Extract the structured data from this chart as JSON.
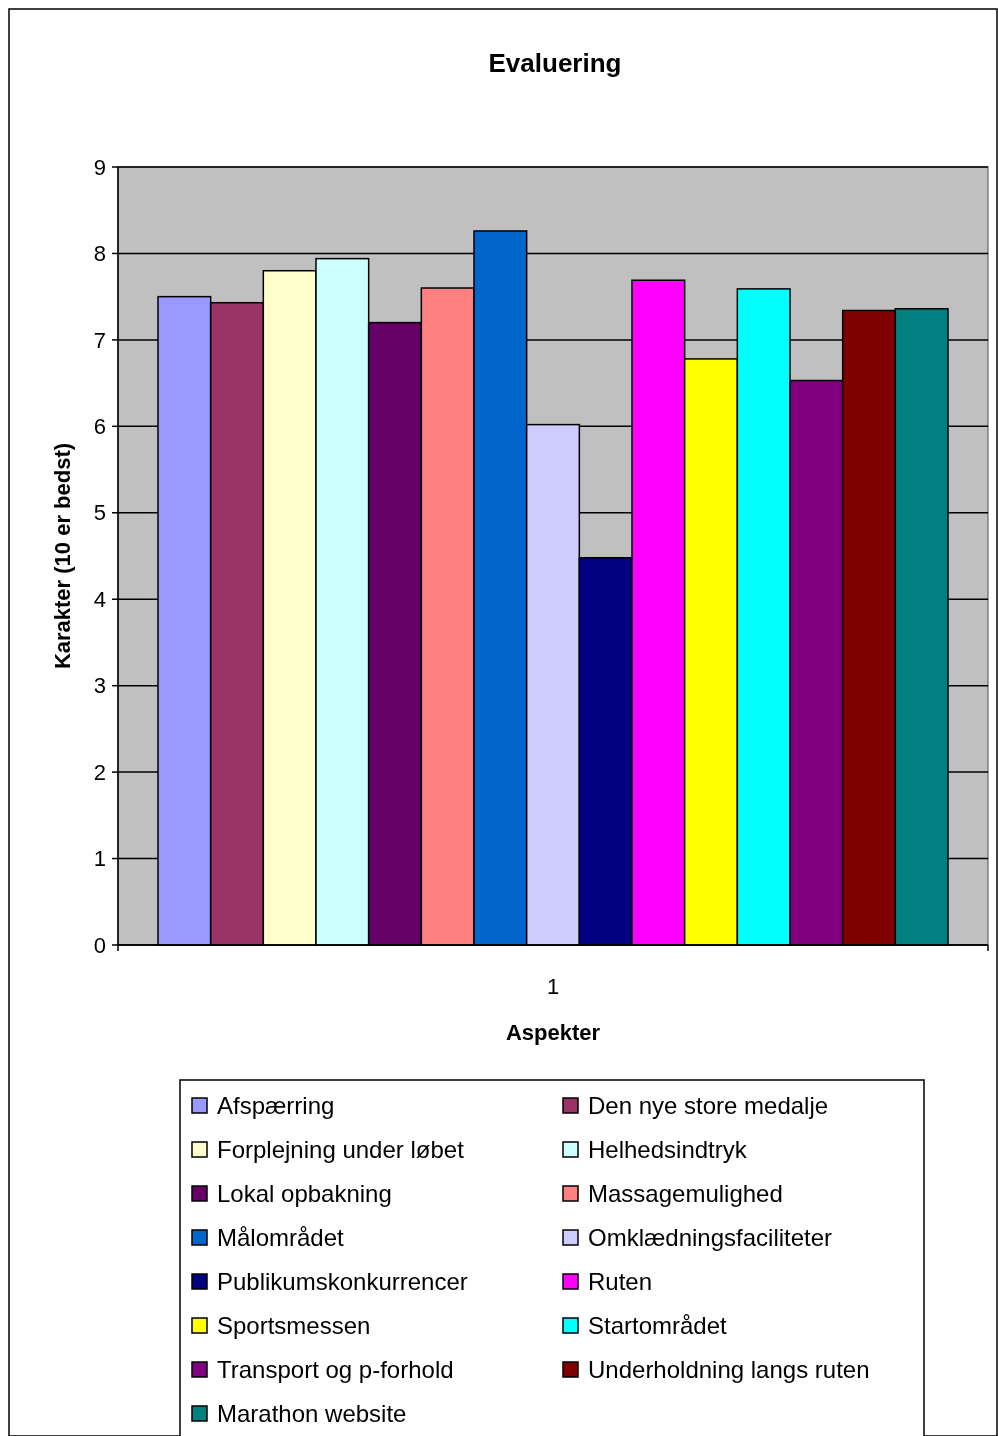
{
  "chart_data": {
    "type": "bar",
    "title": "Evaluering",
    "xlabel": "Aspekter",
    "ylabel": "Karakter (10 er bedst)",
    "categories": [
      "1"
    ],
    "series": [
      {
        "name": "Afspærring",
        "color": "#9999ff",
        "values": [
          7.5
        ]
      },
      {
        "name": "Den nye store medalje",
        "color": "#993366",
        "values": [
          7.43
        ]
      },
      {
        "name": "Forplejning under løbet",
        "color": "#ffffcc",
        "values": [
          7.8
        ]
      },
      {
        "name": "Helhedsindtryk",
        "color": "#ccffff",
        "values": [
          7.94
        ]
      },
      {
        "name": "Lokal opbakning",
        "color": "#660066",
        "values": [
          7.2
        ]
      },
      {
        "name": "Massagemulighed",
        "color": "#ff8080",
        "values": [
          7.6
        ]
      },
      {
        "name": "Målområdet",
        "color": "#0066cc",
        "values": [
          8.26
        ]
      },
      {
        "name": "Omklædningsfaciliteter",
        "color": "#ccccff",
        "values": [
          6.02
        ]
      },
      {
        "name": "Publikumskonkurrencer",
        "color": "#000080",
        "values": [
          4.48
        ]
      },
      {
        "name": "Ruten",
        "color": "#ff00ff",
        "values": [
          7.69
        ]
      },
      {
        "name": "Sportsmessen",
        "color": "#ffff00",
        "values": [
          6.78
        ]
      },
      {
        "name": "Startområdet",
        "color": "#00ffff",
        "values": [
          7.59
        ]
      },
      {
        "name": "Transport og p-forhold",
        "color": "#800080",
        "values": [
          6.53
        ]
      },
      {
        "name": "Underholdning langs ruten",
        "color": "#800000",
        "values": [
          7.34
        ]
      },
      {
        "name": "Marathon website",
        "color": "#008080",
        "values": [
          7.36
        ]
      }
    ],
    "ylim": [
      0,
      9
    ],
    "yticks": [
      0,
      1,
      2,
      3,
      4,
      5,
      6,
      7,
      8,
      9
    ],
    "grid": "y",
    "legend": "bottom"
  }
}
